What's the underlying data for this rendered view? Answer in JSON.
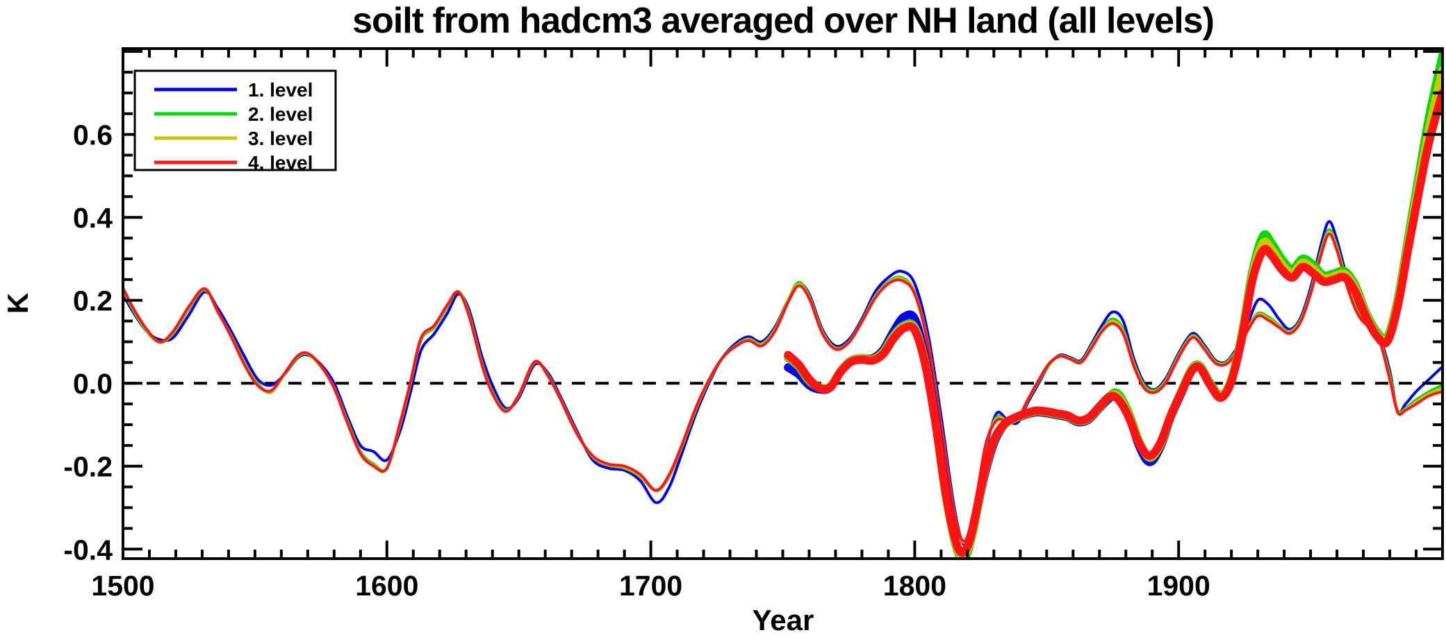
{
  "chart_data": {
    "type": "line",
    "title": "soilt from hadcm3 averaged over NH land (all levels)",
    "xlabel": "Year",
    "ylabel": "K",
    "xlim": [
      1500,
      2000
    ],
    "ylim": [
      -0.423,
      0.807
    ],
    "grid": false,
    "x_major_ticks": [
      1500,
      1600,
      1700,
      1800,
      1900,
      2000
    ],
    "x_tick_labels": [
      "1500",
      "1600",
      "1700",
      "1800",
      "1900",
      ""
    ],
    "x_minor_step": 10,
    "y_major_ticks": [
      -0.4,
      -0.2,
      0.0,
      0.2,
      0.4,
      0.6,
      0.8
    ],
    "y_tick_labels": [
      "-0.4",
      "-0.2",
      "0.0",
      "0.2",
      "0.4",
      "0.6",
      ""
    ],
    "y_minor_step": 0.05,
    "zero_line": {
      "y": 0,
      "style": "dashed",
      "color": "#000000"
    },
    "legend": {
      "position": "top-left",
      "entries": [
        {
          "label": "1. level",
          "color": "#0000f0"
        },
        {
          "label": "2. level",
          "color": "#00dc00"
        },
        {
          "label": "3. level",
          "color": "#c8c800"
        },
        {
          "label": "4. level",
          "color": "#ff1414"
        }
      ]
    },
    "x_thin": [
      1500,
      1504,
      1509,
      1514,
      1519,
      1525,
      1531,
      1536,
      1541,
      1546,
      1551,
      1556,
      1561,
      1566,
      1570,
      1575,
      1580,
      1585,
      1590,
      1595,
      1600,
      1605,
      1609,
      1613,
      1618,
      1623,
      1627,
      1631,
      1636,
      1640,
      1645,
      1650,
      1656,
      1661,
      1666,
      1672,
      1678,
      1684,
      1690,
      1696,
      1702,
      1707,
      1712,
      1717,
      1722,
      1727,
      1732,
      1737,
      1742,
      1747,
      1752,
      1756,
      1760,
      1765,
      1770,
      1775,
      1780,
      1785,
      1790,
      1795,
      1800,
      1805,
      1810,
      1815,
      1819,
      1823,
      1827,
      1831,
      1835,
      1839,
      1843,
      1847,
      1851,
      1855,
      1859,
      1863,
      1867,
      1871,
      1875,
      1879,
      1883,
      1887,
      1891,
      1895,
      1899,
      1903,
      1906,
      1910,
      1914,
      1918,
      1922,
      1926,
      1930,
      1934,
      1938,
      1942,
      1946,
      1950,
      1954,
      1957,
      1960,
      1964,
      1968,
      1972,
      1976,
      1980,
      1983,
      1986,
      1990,
      1995,
      2000
    ],
    "x_thick": [
      1752,
      1756,
      1760,
      1764,
      1768,
      1772,
      1776,
      1780,
      1784,
      1788,
      1792,
      1796,
      1800,
      1804,
      1808,
      1812,
      1816,
      1819,
      1822,
      1826,
      1830,
      1834,
      1838,
      1842,
      1846,
      1850,
      1854,
      1858,
      1862,
      1866,
      1870,
      1874,
      1877,
      1881,
      1885,
      1889,
      1893,
      1897,
      1901,
      1905,
      1908,
      1912,
      1916,
      1920,
      1924,
      1928,
      1932,
      1935,
      1939,
      1943,
      1947,
      1951,
      1955,
      1959,
      1963,
      1967,
      1971,
      1975,
      1979,
      1983,
      1987,
      1991,
      1995,
      2000
    ],
    "series": [
      {
        "name": "1. level",
        "line_style": "thin",
        "starts": 1500,
        "color": "#0000f0",
        "x_ref": "x_thin",
        "y": [
          0.215,
          0.17,
          0.125,
          0.105,
          0.11,
          0.165,
          0.22,
          0.18,
          0.125,
          0.065,
          0.01,
          -0.005,
          0.02,
          0.06,
          0.068,
          0.045,
          0.0,
          -0.08,
          -0.15,
          -0.165,
          -0.185,
          -0.115,
          -0.02,
          0.08,
          0.12,
          0.17,
          0.215,
          0.18,
          0.065,
          -0.005,
          -0.06,
          -0.035,
          0.045,
          0.025,
          -0.035,
          -0.115,
          -0.185,
          -0.205,
          -0.21,
          -0.235,
          -0.288,
          -0.25,
          -0.165,
          -0.075,
          0.0,
          0.06,
          0.095,
          0.112,
          0.1,
          0.135,
          0.2,
          0.24,
          0.215,
          0.13,
          0.09,
          0.105,
          0.155,
          0.22,
          0.255,
          0.27,
          0.24,
          0.12,
          -0.08,
          -0.3,
          -0.39,
          -0.3,
          -0.16,
          -0.073,
          -0.088,
          -0.095,
          -0.045,
          0.0,
          0.045,
          0.068,
          0.062,
          0.055,
          0.095,
          0.14,
          0.172,
          0.15,
          0.06,
          0.0,
          -0.015,
          0.01,
          0.06,
          0.105,
          0.12,
          0.09,
          0.055,
          0.052,
          0.085,
          0.14,
          0.2,
          0.19,
          0.155,
          0.13,
          0.155,
          0.23,
          0.335,
          0.39,
          0.345,
          0.25,
          0.175,
          0.145,
          0.115,
          0.03,
          -0.068,
          -0.05,
          -0.02,
          0.01,
          0.04
        ]
      },
      {
        "name": "2. level",
        "line_style": "thin",
        "starts": 1500,
        "color": "#00dc00",
        "x_ref": "x_thin",
        "y": [
          0.225,
          0.175,
          0.125,
          0.098,
          0.12,
          0.18,
          0.225,
          0.17,
          0.115,
          0.05,
          0.0,
          -0.022,
          0.02,
          0.062,
          0.07,
          0.04,
          -0.01,
          -0.09,
          -0.165,
          -0.195,
          -0.205,
          -0.1,
          0.0,
          0.105,
          0.135,
          0.185,
          0.222,
          0.17,
          0.05,
          -0.02,
          -0.065,
          -0.03,
          0.05,
          0.02,
          -0.04,
          -0.12,
          -0.178,
          -0.198,
          -0.205,
          -0.225,
          -0.26,
          -0.225,
          -0.15,
          -0.065,
          0.005,
          0.06,
          0.09,
          0.107,
          0.095,
          0.13,
          0.2,
          0.243,
          0.21,
          0.125,
          0.085,
          0.1,
          0.15,
          0.21,
          0.245,
          0.255,
          0.22,
          0.1,
          -0.1,
          -0.31,
          -0.385,
          -0.29,
          -0.15,
          -0.082,
          -0.09,
          -0.088,
          -0.04,
          0.005,
          0.045,
          0.066,
          0.06,
          0.052,
          0.09,
          0.13,
          0.155,
          0.13,
          0.05,
          -0.005,
          -0.017,
          0.005,
          0.055,
          0.1,
          0.115,
          0.085,
          0.052,
          0.05,
          0.08,
          0.13,
          0.168,
          0.16,
          0.14,
          0.125,
          0.15,
          0.22,
          0.32,
          0.37,
          0.33,
          0.24,
          0.17,
          0.14,
          0.11,
          0.02,
          -0.065,
          -0.06,
          -0.04,
          -0.02,
          -0.005
        ]
      },
      {
        "name": "3. level",
        "line_style": "thin",
        "starts": 1500,
        "color": "#c8c800",
        "x_ref": "x_thin",
        "y": [
          0.228,
          0.178,
          0.128,
          0.099,
          0.123,
          0.183,
          0.227,
          0.171,
          0.114,
          0.048,
          -0.003,
          -0.02,
          0.021,
          0.064,
          0.071,
          0.041,
          -0.011,
          -0.093,
          -0.168,
          -0.198,
          -0.205,
          -0.098,
          0.003,
          0.108,
          0.138,
          0.188,
          0.221,
          0.168,
          0.048,
          -0.023,
          -0.067,
          -0.029,
          0.051,
          0.019,
          -0.041,
          -0.121,
          -0.177,
          -0.197,
          -0.203,
          -0.223,
          -0.259,
          -0.223,
          -0.148,
          -0.063,
          0.007,
          0.06,
          0.089,
          0.105,
          0.093,
          0.128,
          0.198,
          0.239,
          0.208,
          0.123,
          0.084,
          0.099,
          0.149,
          0.208,
          0.243,
          0.252,
          0.218,
          0.098,
          -0.103,
          -0.313,
          -0.383,
          -0.288,
          -0.148,
          -0.086,
          -0.091,
          -0.087,
          -0.039,
          0.007,
          0.047,
          0.066,
          0.059,
          0.051,
          0.088,
          0.128,
          0.15,
          0.125,
          0.046,
          -0.009,
          -0.02,
          0.003,
          0.053,
          0.098,
          0.113,
          0.083,
          0.05,
          0.048,
          0.078,
          0.128,
          0.165,
          0.156,
          0.138,
          0.123,
          0.148,
          0.218,
          0.315,
          0.365,
          0.325,
          0.235,
          0.168,
          0.138,
          0.108,
          0.015,
          -0.068,
          -0.063,
          -0.045,
          -0.025,
          -0.012
        ]
      },
      {
        "name": "4. level",
        "line_style": "thin",
        "starts": 1500,
        "color": "#ff1414",
        "x_ref": "x_thin",
        "y": [
          0.23,
          0.18,
          0.13,
          0.1,
          0.125,
          0.185,
          0.228,
          0.172,
          0.112,
          0.045,
          -0.005,
          -0.018,
          0.022,
          0.065,
          0.072,
          0.042,
          -0.012,
          -0.095,
          -0.17,
          -0.2,
          -0.205,
          -0.095,
          0.005,
          0.11,
          0.14,
          0.19,
          0.22,
          0.165,
          0.045,
          -0.025,
          -0.068,
          -0.028,
          0.052,
          0.018,
          -0.042,
          -0.122,
          -0.175,
          -0.195,
          -0.2,
          -0.22,
          -0.258,
          -0.22,
          -0.145,
          -0.06,
          0.008,
          0.06,
          0.088,
          0.103,
          0.09,
          0.125,
          0.195,
          0.235,
          0.205,
          0.12,
          0.082,
          0.098,
          0.148,
          0.205,
          0.24,
          0.248,
          0.215,
          0.095,
          -0.105,
          -0.315,
          -0.38,
          -0.285,
          -0.145,
          -0.09,
          -0.092,
          -0.085,
          -0.038,
          0.008,
          0.048,
          0.065,
          0.058,
          0.05,
          0.085,
          0.125,
          0.144,
          0.12,
          0.042,
          -0.012,
          -0.022,
          0.0,
          0.05,
          0.095,
          0.11,
          0.08,
          0.048,
          0.046,
          0.075,
          0.125,
          0.162,
          0.152,
          0.135,
          0.12,
          0.145,
          0.215,
          0.31,
          0.36,
          0.32,
          0.23,
          0.165,
          0.135,
          0.105,
          0.01,
          -0.07,
          -0.065,
          -0.05,
          -0.03,
          -0.02
        ]
      },
      {
        "name": "1. level",
        "line_style": "thick",
        "starts": 1752,
        "color": "#0000f0",
        "x_ref": "x_thick",
        "y": [
          0.038,
          0.022,
          -0.005,
          -0.015,
          -0.01,
          0.03,
          0.055,
          0.06,
          0.06,
          0.08,
          0.125,
          0.16,
          0.155,
          0.06,
          -0.09,
          -0.27,
          -0.395,
          -0.41,
          -0.355,
          -0.235,
          -0.145,
          -0.1,
          -0.086,
          -0.076,
          -0.07,
          -0.072,
          -0.077,
          -0.082,
          -0.094,
          -0.087,
          -0.06,
          -0.035,
          -0.03,
          -0.075,
          -0.15,
          -0.19,
          -0.155,
          -0.082,
          -0.024,
          0.032,
          0.04,
          -0.002,
          -0.032,
          0.008,
          0.115,
          0.26,
          0.34,
          0.325,
          0.29,
          0.265,
          0.29,
          0.275,
          0.25,
          0.255,
          0.26,
          0.228,
          0.165,
          0.12,
          0.105,
          0.19,
          0.34,
          0.48,
          0.62,
          0.77
        ]
      },
      {
        "name": "2. level",
        "line_style": "thick",
        "starts": 1752,
        "color": "#00dc00",
        "x_ref": "x_thick",
        "y": [
          0.062,
          0.04,
          0.005,
          -0.01,
          -0.008,
          0.03,
          0.055,
          0.06,
          0.058,
          0.075,
          0.115,
          0.14,
          0.135,
          0.05,
          -0.1,
          -0.28,
          -0.4,
          -0.42,
          -0.36,
          -0.23,
          -0.14,
          -0.1,
          -0.085,
          -0.075,
          -0.068,
          -0.07,
          -0.075,
          -0.08,
          -0.092,
          -0.085,
          -0.058,
          -0.03,
          -0.025,
          -0.07,
          -0.14,
          -0.18,
          -0.15,
          -0.08,
          -0.02,
          0.035,
          0.042,
          0.0,
          -0.03,
          0.01,
          0.12,
          0.27,
          0.355,
          0.34,
          0.3,
          0.275,
          0.3,
          0.285,
          0.26,
          0.265,
          0.27,
          0.235,
          0.17,
          0.125,
          0.11,
          0.2,
          0.35,
          0.5,
          0.645,
          0.79
        ]
      },
      {
        "name": "3. level",
        "line_style": "thick",
        "starts": 1752,
        "color": "#c8c800",
        "x_ref": "x_thick",
        "y": [
          0.065,
          0.043,
          0.008,
          -0.011,
          -0.009,
          0.029,
          0.054,
          0.059,
          0.057,
          0.073,
          0.112,
          0.137,
          0.132,
          0.048,
          -0.1,
          -0.278,
          -0.395,
          -0.413,
          -0.355,
          -0.228,
          -0.139,
          -0.099,
          -0.084,
          -0.074,
          -0.067,
          -0.069,
          -0.074,
          -0.079,
          -0.091,
          -0.084,
          -0.057,
          -0.031,
          -0.032,
          -0.075,
          -0.143,
          -0.178,
          -0.148,
          -0.079,
          -0.021,
          0.033,
          0.04,
          -0.003,
          -0.033,
          0.008,
          0.115,
          0.26,
          0.338,
          0.325,
          0.288,
          0.265,
          0.29,
          0.275,
          0.253,
          0.258,
          0.263,
          0.228,
          0.165,
          0.12,
          0.105,
          0.193,
          0.338,
          0.48,
          0.615,
          0.755
        ]
      },
      {
        "name": "4. level",
        "line_style": "thick",
        "starts": 1752,
        "color": "#ff1414",
        "x_ref": "x_thick",
        "y": [
          0.068,
          0.045,
          0.01,
          -0.012,
          -0.01,
          0.028,
          0.052,
          0.057,
          0.055,
          0.07,
          0.108,
          0.133,
          0.128,
          0.045,
          -0.1,
          -0.275,
          -0.39,
          -0.405,
          -0.35,
          -0.225,
          -0.138,
          -0.098,
          -0.083,
          -0.073,
          -0.066,
          -0.068,
          -0.073,
          -0.078,
          -0.09,
          -0.083,
          -0.056,
          -0.032,
          -0.038,
          -0.08,
          -0.145,
          -0.175,
          -0.145,
          -0.078,
          -0.022,
          0.03,
          0.038,
          -0.005,
          -0.035,
          0.005,
          0.11,
          0.25,
          0.32,
          0.31,
          0.275,
          0.255,
          0.28,
          0.265,
          0.245,
          0.25,
          0.255,
          0.22,
          0.16,
          0.115,
          0.1,
          0.185,
          0.325,
          0.46,
          0.585,
          0.7
        ]
      }
    ]
  }
}
